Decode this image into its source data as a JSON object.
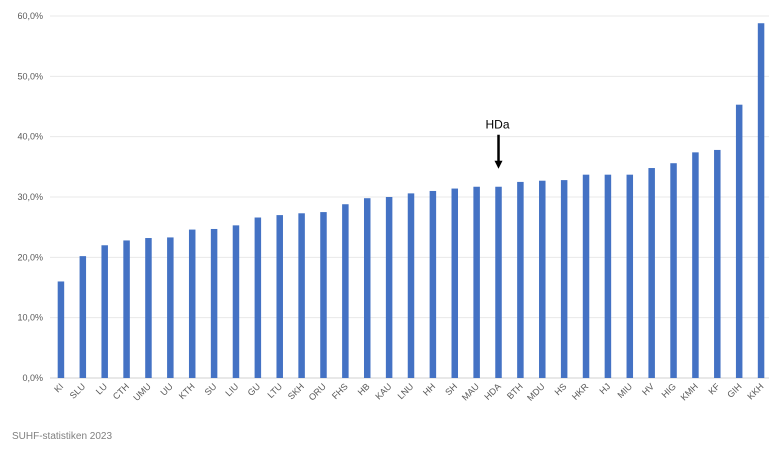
{
  "chart_data": {
    "type": "bar",
    "categories": [
      "KI",
      "SLU",
      "LU",
      "CTH",
      "UMU",
      "UU",
      "KTH",
      "SU",
      "LIU",
      "GU",
      "LTU",
      "SKH",
      "ORU",
      "FHS",
      "HB",
      "KAU",
      "LNU",
      "HH",
      "SH",
      "MAU",
      "HDA",
      "BTH",
      "MDU",
      "HS",
      "HKR",
      "HJ",
      "MIU",
      "HV",
      "HIG",
      "KMH",
      "KF",
      "GIH",
      "KKH"
    ],
    "values": [
      16.0,
      20.2,
      22.0,
      22.8,
      23.2,
      23.3,
      24.6,
      24.7,
      25.3,
      26.6,
      27.0,
      27.3,
      27.5,
      28.8,
      29.8,
      30.0,
      30.6,
      31.0,
      31.4,
      31.7,
      31.7,
      32.5,
      32.7,
      32.8,
      33.7,
      33.7,
      33.7,
      34.8,
      35.6,
      37.4,
      37.8,
      45.3,
      58.8
    ],
    "y_tick_labels": [
      "0,0%",
      "10,0%",
      "20,0%",
      "30,0%",
      "40,0%",
      "50,0%",
      "60,0%"
    ],
    "ylim": [
      0,
      60
    ],
    "grid": true,
    "bar_color": "#4472c4",
    "annotation": {
      "label": "HDa",
      "category": "HDA"
    },
    "source_note": "SUHF-statistiken 2023"
  }
}
